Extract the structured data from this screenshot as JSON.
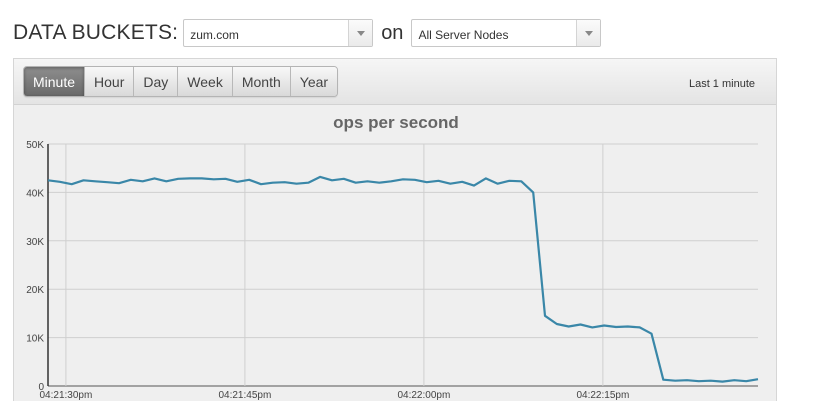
{
  "header": {
    "title": "DATA BUCKETS:",
    "bucket_select": {
      "value": "zum.com"
    },
    "on_label": "on",
    "node_select": {
      "value": "All Server Nodes"
    }
  },
  "toolbar": {
    "ranges": [
      "Minute",
      "Hour",
      "Day",
      "Week",
      "Month",
      "Year"
    ],
    "active_range": "Minute",
    "range_label": "Last 1 minute"
  },
  "colors": {
    "line": "#3a87a8",
    "active_button": "#7c7c7c",
    "panel_bg": "#efefef"
  },
  "chart_data": {
    "type": "line",
    "title": "ops per second",
    "y_ticks": [
      "0",
      "10K",
      "20K",
      "30K",
      "40K",
      "50K"
    ],
    "x_ticks": [
      "04:21:30pm",
      "04:21:45pm",
      "04:22:00pm",
      "04:22:15pm"
    ],
    "ylim": [
      0,
      50000
    ],
    "x_seconds_range": [
      0,
      59.5
    ],
    "grid": true,
    "series": [
      {
        "values": [
          42500,
          42200,
          41700,
          42500,
          42300,
          42100,
          41900,
          42600,
          42300,
          42900,
          42300,
          42800,
          42900,
          42900,
          42700,
          42800,
          42200,
          42600,
          41700,
          42000,
          42100,
          41800,
          42000,
          43200,
          42500,
          42800,
          42000,
          42300,
          42000,
          42300,
          42700,
          42600,
          42100,
          42400,
          41800,
          42200,
          41400,
          42900,
          41800,
          42400,
          42300,
          40000,
          14500,
          12800,
          12300,
          12700,
          12100,
          12500,
          12200,
          12300,
          12100,
          10800,
          1300,
          1100,
          1200,
          1000,
          1100,
          900,
          1200,
          1000,
          1400
        ]
      }
    ]
  }
}
